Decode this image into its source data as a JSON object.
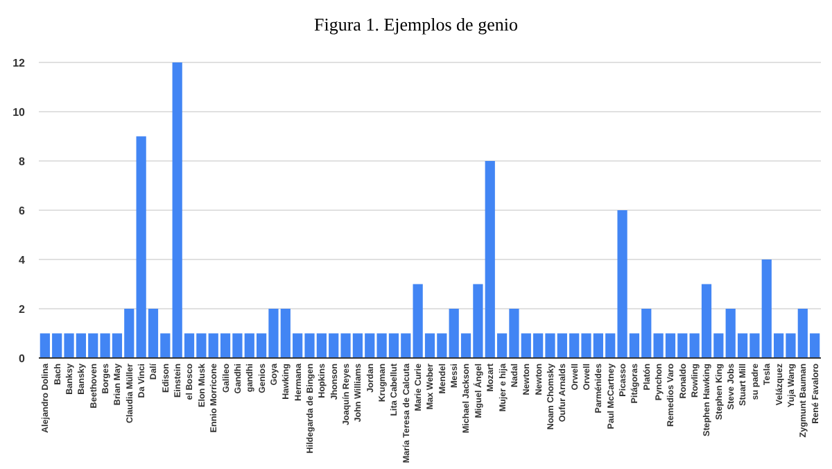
{
  "chart_data": {
    "type": "bar",
    "title": "Figura 1. Ejemplos de genio",
    "categories": [
      "Alejandro Dolina",
      "Bach",
      "Banksy",
      "Bansky",
      "Beethoven",
      "Borges",
      "Brian May",
      "Claudia Müller",
      "Da Vinci",
      "Dalí",
      "Edison",
      "Einstein",
      "el Bosco",
      "Elon Musk",
      "Ennio Morricone",
      "Galileo",
      "Gandhi",
      "gandhi",
      "Genios",
      "Goya",
      "Hawking",
      "Hermana",
      "Hildegarda de Bingen",
      "Hopkins",
      "Jhonson",
      "Joaquín Reyes",
      "John Williams",
      "Jordan",
      "Krugman",
      "Lita Cabellut",
      "María Teresa de Calcuta",
      "Marie Curie",
      "Max Weber",
      "Mendel",
      "Messi",
      "Michael Jackson",
      "Miguel Ángel",
      "Mozart",
      "Mujer e hija",
      "Nadal",
      "Newton",
      "Newton",
      "Noam Chomsky",
      "Oufur Arnalds",
      "Orwell",
      "Orwell",
      "Parménides",
      "Paul McCartney",
      "Picasso",
      "Pitágoras",
      "Platón",
      "Pynchon",
      "Remedios Varo",
      "Ronaldo",
      "Rowling",
      "Stephen Hawking",
      "Stephen King",
      "Steve Jobs",
      "Stuart Mill",
      "su padre",
      "Tesla",
      "Velázquez",
      "Yuja Wang",
      "Zygmunt Bauman",
      "René Favaloro"
    ],
    "values": [
      1,
      1,
      1,
      1,
      1,
      1,
      1,
      2,
      9,
      2,
      1,
      12,
      1,
      1,
      1,
      1,
      1,
      1,
      1,
      2,
      2,
      1,
      1,
      1,
      1,
      1,
      1,
      1,
      1,
      1,
      1,
      3,
      1,
      1,
      2,
      1,
      3,
      8,
      1,
      2,
      1,
      1,
      1,
      1,
      1,
      1,
      1,
      1,
      6,
      1,
      2,
      1,
      1,
      1,
      1,
      3,
      1,
      2,
      1,
      1,
      4,
      1,
      1,
      2,
      1
    ],
    "color": "#4285f4",
    "ylim": [
      0,
      12
    ],
    "yticks": [
      0,
      2,
      4,
      6,
      8,
      10,
      12
    ],
    "grid": "y"
  }
}
